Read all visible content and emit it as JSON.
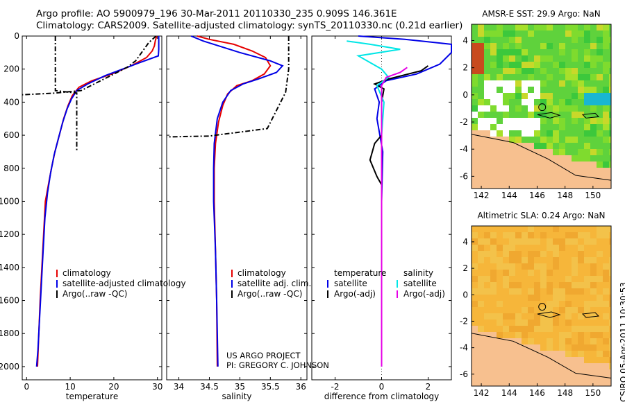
{
  "header": {
    "line1": "Argo profile: AO 5900979_196 30-Mar-2011 20110330_235 0.909S 146.361E",
    "line2": "Climatology: CARS2009. Satellite-adjusted climatology: synTS_20110330.nc (0.21d earlier)"
  },
  "credit": {
    "line1": "US ARGO PROJECT",
    "line2": "PI: GREGORY C. JOHNSON"
  },
  "side_label": "CSIRO 05-Apr-2011 10:30:53",
  "colors": {
    "climatology": "#e60000",
    "satellite": "#0000e6",
    "argo": "#000000",
    "sal_satellite": "#00e6e6",
    "sal_argo": "#e600e6",
    "land": "#f7c08f",
    "sst_green": "#5fd23c",
    "sla_orange": "#f6b63a"
  },
  "chart_data": [
    {
      "type": "line",
      "name": "temperature-panel",
      "xlabel": "temperature",
      "ylabel": "",
      "xlim": [
        -1,
        31
      ],
      "ylim": [
        2080,
        0
      ],
      "y_reversed": true,
      "xticks": [
        0,
        10,
        20,
        30
      ],
      "yticks": [
        0,
        200,
        400,
        600,
        800,
        1000,
        1200,
        1400,
        1600,
        1800,
        2000
      ],
      "legend": {
        "placement": "lower-center",
        "entries": [
          "climatology",
          "satellite-adjusted climatology",
          "Argo(..raw -QC)"
        ]
      },
      "series": [
        {
          "name": "climatology",
          "color": "#e60000",
          "points": [
            [
              29.8,
              0
            ],
            [
              29.5,
              30
            ],
            [
              29.3,
              60
            ],
            [
              28.8,
              90
            ],
            [
              27.5,
              130
            ],
            [
              24,
              180
            ],
            [
              19.5,
              230
            ],
            [
              15,
              270
            ],
            [
              12,
              310
            ],
            [
              10.5,
              360
            ],
            [
              9.5,
              420
            ],
            [
              8.5,
              500
            ],
            [
              7.5,
              600
            ],
            [
              6.5,
              700
            ],
            [
              5.7,
              800
            ],
            [
              5,
              900
            ],
            [
              4.3,
              1000
            ],
            [
              3.9,
              1200
            ],
            [
              3.5,
              1400
            ],
            [
              3.1,
              1600
            ],
            [
              2.8,
              1800
            ],
            [
              2.5,
              2000
            ]
          ]
        },
        {
          "name": "satellite-adjusted climatology",
          "color": "#0000e6",
          "points": [
            [
              30.3,
              0
            ],
            [
              30.3,
              40
            ],
            [
              30.3,
              80
            ],
            [
              30.2,
              120
            ],
            [
              26,
              160
            ],
            [
              22,
              200
            ],
            [
              18,
              240
            ],
            [
              14,
              290
            ],
            [
              11.5,
              330
            ],
            [
              10.3,
              380
            ],
            [
              9.3,
              440
            ],
            [
              8.3,
              520
            ],
            [
              7.3,
              620
            ],
            [
              6.3,
              720
            ],
            [
              5.5,
              830
            ],
            [
              4.8,
              950
            ],
            [
              4.2,
              1100
            ],
            [
              3.8,
              1300
            ],
            [
              3.4,
              1500
            ],
            [
              3,
              1700
            ],
            [
              2.6,
              1900
            ],
            [
              2.3,
              2000
            ]
          ]
        },
        {
          "name": "Argo(..raw -QC)",
          "color": "#000000",
          "dash": true,
          "points": [
            [
              29.7,
              0
            ],
            [
              28,
              40
            ],
            [
              25,
              150
            ],
            [
              23,
              190
            ],
            [
              12.5,
              330
            ],
            [
              6.5,
              345
            ],
            [
              -1,
              355
            ]
          ]
        },
        {
          "name": "Argo(..raw -QC) deep",
          "color": "#000000",
          "dash": true,
          "points": [
            [
              6.6,
              0
            ],
            [
              6.6,
              330
            ],
            [
              11.5,
              345
            ],
            [
              11.5,
              700
            ]
          ]
        }
      ]
    },
    {
      "type": "line",
      "name": "salinity-panel",
      "xlabel": "salinity",
      "ylabel": "",
      "xlim": [
        33.8,
        36.1
      ],
      "ylim": [
        2080,
        0
      ],
      "y_reversed": true,
      "xticks": [
        34,
        34.5,
        35,
        35.5,
        36
      ],
      "legend": {
        "placement": "lower-center",
        "entries": [
          "climatology",
          "satellite adj. clim.",
          "Argo(..raw -QC)"
        ]
      },
      "series": [
        {
          "name": "climatology",
          "color": "#e60000",
          "points": [
            [
              34.3,
              0
            ],
            [
              34.5,
              20
            ],
            [
              34.9,
              50
            ],
            [
              35.2,
              90
            ],
            [
              35.42,
              130
            ],
            [
              35.5,
              180
            ],
            [
              35.4,
              230
            ],
            [
              35.2,
              270
            ],
            [
              34.95,
              300
            ],
            [
              34.8,
              350
            ],
            [
              34.72,
              420
            ],
            [
              34.65,
              520
            ],
            [
              34.6,
              650
            ],
            [
              34.58,
              800
            ],
            [
              34.58,
              1000
            ],
            [
              34.6,
              1300
            ],
            [
              34.62,
              1600
            ],
            [
              34.63,
              2000
            ]
          ]
        },
        {
          "name": "satellite adj. clim.",
          "color": "#0000e6",
          "points": [
            [
              34.2,
              0
            ],
            [
              34.4,
              30
            ],
            [
              35,
              100
            ],
            [
              35.5,
              150
            ],
            [
              35.7,
              180
            ],
            [
              35.6,
              220
            ],
            [
              35.3,
              260
            ],
            [
              35.05,
              290
            ],
            [
              34.85,
              330
            ],
            [
              34.72,
              400
            ],
            [
              34.63,
              500
            ],
            [
              34.58,
              650
            ],
            [
              34.57,
              800
            ],
            [
              34.57,
              1000
            ],
            [
              34.6,
              1300
            ],
            [
              34.62,
              1600
            ],
            [
              34.64,
              2000
            ]
          ]
        },
        {
          "name": "Argo(..raw -QC)",
          "color": "#000000",
          "dash": true,
          "points": [
            [
              35.8,
              0
            ],
            [
              35.8,
              200
            ],
            [
              35.75,
              340
            ],
            [
              35.45,
              560
            ],
            [
              34.6,
              600
            ],
            [
              34.5,
              605
            ],
            [
              33.8,
              610
            ]
          ]
        }
      ]
    },
    {
      "type": "line",
      "name": "difference-panel",
      "xlabel": "difference from climatology",
      "ylabel": "",
      "xlim": [
        -3,
        3
      ],
      "ylim": [
        2080,
        0
      ],
      "y_reversed": true,
      "xticks": [
        -2,
        0,
        2
      ],
      "legend": {
        "placement": "lower-center",
        "columns": [
          {
            "title": "temperature",
            "entries": [
              "satellite",
              "Argo(-adj)"
            ]
          },
          {
            "title": "salinity",
            "entries": [
              "satellite",
              "Argo(-adj)"
            ]
          }
        ]
      },
      "series": [
        {
          "name": "temperature satellite",
          "color": "#0000e6",
          "points": [
            [
              -1,
              0
            ],
            [
              1,
              20
            ],
            [
              3,
              50
            ],
            [
              3,
              100
            ],
            [
              2.5,
              170
            ],
            [
              1.5,
              230
            ],
            [
              0.2,
              270
            ],
            [
              -0.3,
              320
            ],
            [
              -0.1,
              400
            ],
            [
              -0.2,
              500
            ],
            [
              0.05,
              700
            ],
            [
              0,
              1000
            ],
            [
              0,
              1500
            ],
            [
              0,
              2000
            ]
          ]
        },
        {
          "name": "temperature Argo(-adj)",
          "color": "#000000",
          "points": [
            [
              2,
              180
            ],
            [
              1.7,
              210
            ],
            [
              0.3,
              260
            ],
            [
              -0.3,
              290
            ],
            [
              0.1,
              320
            ],
            [
              0,
              400
            ],
            [
              0,
              600
            ],
            [
              -0.3,
              650
            ],
            [
              -0.5,
              750
            ],
            [
              -0.2,
              850
            ],
            [
              0,
              900
            ],
            [
              0,
              2000
            ]
          ]
        },
        {
          "name": "salinity satellite",
          "color": "#00e6e6",
          "points": [
            [
              -1.5,
              30
            ],
            [
              -0.5,
              50
            ],
            [
              0.8,
              80
            ],
            [
              -1,
              120
            ],
            [
              0,
              200
            ],
            [
              0.3,
              250
            ],
            [
              -0.2,
              300
            ],
            [
              0.1,
              400
            ],
            [
              0,
              600
            ],
            [
              0,
              1000
            ],
            [
              0,
              2000
            ]
          ]
        },
        {
          "name": "salinity Argo(-adj)",
          "color": "#e600e6",
          "points": [
            [
              1.1,
              190
            ],
            [
              0.8,
              220
            ],
            [
              0.2,
              250
            ],
            [
              0,
              300
            ],
            [
              0,
              2000
            ]
          ]
        }
      ]
    },
    {
      "type": "heatmap",
      "name": "sst-map",
      "title": "AMSR-E SST: 29.9 Argo: NaN",
      "xlim": [
        141.3,
        151.3
      ],
      "ylim": [
        -6.9,
        5.2
      ],
      "xticks": [
        142,
        144,
        146,
        148,
        150
      ],
      "yticks": [
        -6,
        -4,
        -2,
        0,
        2,
        4
      ],
      "float_position": [
        146.361,
        -0.909
      ]
    },
    {
      "type": "heatmap",
      "name": "sla-map",
      "title": "Altimetric SLA: 0.24 Argo: NaN",
      "xlim": [
        141.3,
        151.3
      ],
      "ylim": [
        -6.9,
        5.2
      ],
      "xticks": [
        142,
        144,
        146,
        148,
        150
      ],
      "yticks": [
        -6,
        -4,
        -2,
        0,
        2,
        4
      ],
      "float_position": [
        146.361,
        -0.909
      ]
    }
  ]
}
